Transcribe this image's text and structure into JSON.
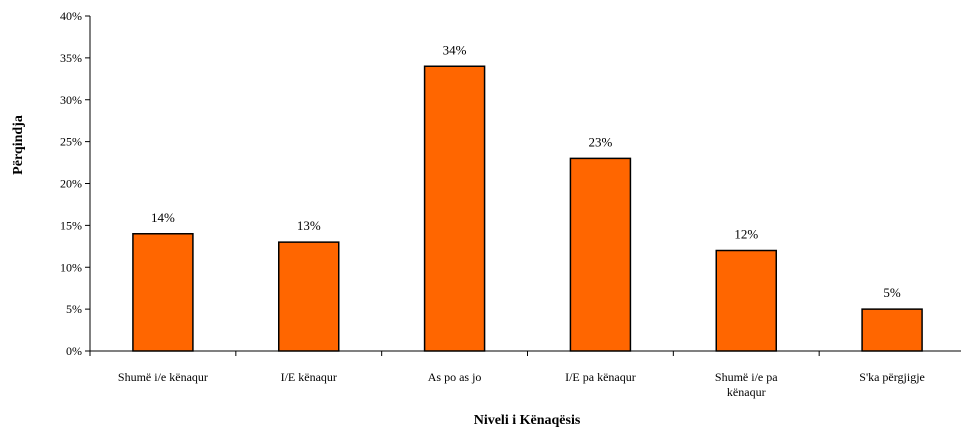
{
  "chart_data": {
    "type": "bar",
    "title": "",
    "xlabel": "Niveli i Kënaqësis",
    "ylabel": "Përqindja",
    "ylim": [
      0,
      40
    ],
    "yticks": [
      "0%",
      "5%",
      "10%",
      "15%",
      "20%",
      "25%",
      "30%",
      "35%",
      "40%"
    ],
    "categories": [
      [
        "Shumë i/e kënaqur"
      ],
      [
        "I/E kënaqur"
      ],
      [
        "As po as jo"
      ],
      [
        "I/E pa kënaqur"
      ],
      [
        "Shumë i/e pa",
        "kënaqur"
      ],
      [
        "S'ka përgjigje"
      ]
    ],
    "values": [
      14,
      13,
      34,
      23,
      12,
      5
    ],
    "data_labels": [
      "14%",
      "13%",
      "34%",
      "23%",
      "12%",
      "5%"
    ],
    "grid": false,
    "legend": "none",
    "bar_color": "#ff6600",
    "bar_edge_color": "#000000"
  }
}
